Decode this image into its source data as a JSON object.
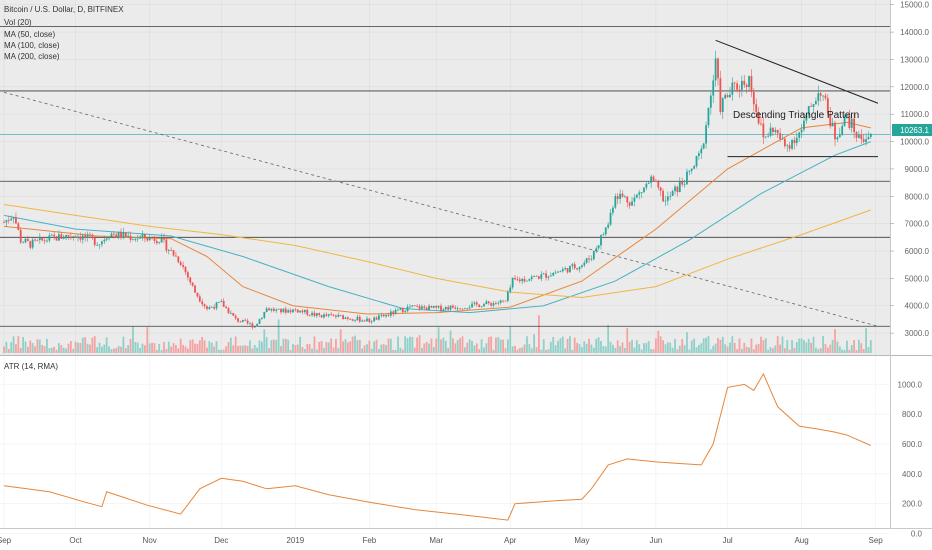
{
  "chart_data": [
    {
      "type": "candlestick",
      "title": "Bitcoin / U.S. Dollar, D, BITFINEX",
      "legend": [
        "Vol (20)",
        "MA (50, close)",
        "MA (100, close)",
        "MA (200, close)"
      ],
      "y_ticks": [
        "15000.0",
        "14000.0",
        "13000.0",
        "12000.0",
        "11000.0",
        "10000.0",
        "9000.0",
        "8000.0",
        "7000.0",
        "6000.0",
        "5000.0",
        "4000.0",
        "3000.0"
      ],
      "ylim": [
        2200,
        15100
      ],
      "last_price": "10263.1",
      "annotation": "Descending Triangle Pattern",
      "x_ticks": [
        "Sep",
        "Oct",
        "Nov",
        "Dec",
        "2019",
        "Feb",
        "Mar",
        "Apr",
        "May",
        "Jun",
        "Jul",
        "Aug",
        "Sep"
      ],
      "x_range": [
        "2018-09-01",
        "2019-09-02"
      ],
      "horizontal_levels": [
        14200,
        11850,
        10260,
        8550,
        6500,
        3250
      ],
      "triangle": {
        "upper": [
          [
            "2019-06-26",
            13700
          ],
          [
            "2019-09-02",
            11400
          ]
        ],
        "lower": [
          [
            "2019-07-01",
            9450
          ],
          [
            "2019-09-02",
            9450
          ]
        ]
      },
      "long_trendline": [
        [
          "2018-09-01",
          11800
        ],
        [
          "2019-09-02",
          3250
        ]
      ],
      "price_path": [
        [
          "2018-09-01",
          7050
        ],
        [
          "2018-09-05",
          7350
        ],
        [
          "2018-09-08",
          6400
        ],
        [
          "2018-09-12",
          6250
        ],
        [
          "2018-09-20",
          6450
        ],
        [
          "2018-10-01",
          6600
        ],
        [
          "2018-10-11",
          6300
        ],
        [
          "2018-10-15",
          6650
        ],
        [
          "2018-10-25",
          6500
        ],
        [
          "2018-11-05",
          6450
        ],
        [
          "2018-11-14",
          5600
        ],
        [
          "2018-11-20",
          4500
        ],
        [
          "2018-11-25",
          3900
        ],
        [
          "2018-12-01",
          4100
        ],
        [
          "2018-12-07",
          3500
        ],
        [
          "2018-12-15",
          3250
        ],
        [
          "2018-12-20",
          3900
        ],
        [
          "2018-12-25",
          3800
        ],
        [
          "2019-01-01",
          3850
        ],
        [
          "2019-01-10",
          3650
        ],
        [
          "2019-01-20",
          3600
        ],
        [
          "2019-02-01",
          3450
        ],
        [
          "2019-02-08",
          3650
        ],
        [
          "2019-02-18",
          3950
        ],
        [
          "2019-03-01",
          3900
        ],
        [
          "2019-03-15",
          4000
        ],
        [
          "2019-03-30",
          4150
        ],
        [
          "2019-04-02",
          4900
        ],
        [
          "2019-04-15",
          5100
        ],
        [
          "2019-04-25",
          5350
        ],
        [
          "2019-05-01",
          5500
        ],
        [
          "2019-05-05",
          5800
        ],
        [
          "2019-05-12",
          7000
        ],
        [
          "2019-05-15",
          8100
        ],
        [
          "2019-05-22",
          7800
        ],
        [
          "2019-05-30",
          8600
        ],
        [
          "2019-06-05",
          7800
        ],
        [
          "2019-06-15",
          8800
        ],
        [
          "2019-06-20",
          9600
        ],
        [
          "2019-06-26",
          12800
        ],
        [
          "2019-06-28",
          11300
        ],
        [
          "2019-07-03",
          11900
        ],
        [
          "2019-07-10",
          12300
        ],
        [
          "2019-07-16",
          10100
        ],
        [
          "2019-07-20",
          10500
        ],
        [
          "2019-07-25",
          9800
        ],
        [
          "2019-08-01",
          10400
        ],
        [
          "2019-08-06",
          11500
        ],
        [
          "2019-08-09",
          11900
        ],
        [
          "2019-08-15",
          10200
        ],
        [
          "2019-08-20",
          10900
        ],
        [
          "2019-08-25",
          10100
        ],
        [
          "2019-08-30",
          10263
        ]
      ],
      "ma_50_path": [
        [
          "2018-09-01",
          6900
        ],
        [
          "2018-10-10",
          6550
        ],
        [
          "2018-11-10",
          6450
        ],
        [
          "2018-11-25",
          5800
        ],
        [
          "2018-12-10",
          4700
        ],
        [
          "2018-12-31",
          4000
        ],
        [
          "2019-01-31",
          3700
        ],
        [
          "2019-03-01",
          3750
        ],
        [
          "2019-04-01",
          3950
        ],
        [
          "2019-05-01",
          4900
        ],
        [
          "2019-06-01",
          6800
        ],
        [
          "2019-07-01",
          9000
        ],
        [
          "2019-08-01",
          10500
        ],
        [
          "2019-08-20",
          10700
        ],
        [
          "2019-08-30",
          10500
        ]
      ],
      "ma_100_path": [
        [
          "2018-09-01",
          7300
        ],
        [
          "2018-10-01",
          6800
        ],
        [
          "2018-11-10",
          6550
        ],
        [
          "2018-12-10",
          5800
        ],
        [
          "2019-01-15",
          4700
        ],
        [
          "2019-02-15",
          3900
        ],
        [
          "2019-03-15",
          3750
        ],
        [
          "2019-04-15",
          4000
        ],
        [
          "2019-05-15",
          4900
        ],
        [
          "2019-06-15",
          6400
        ],
        [
          "2019-07-15",
          8100
        ],
        [
          "2019-08-15",
          9500
        ],
        [
          "2019-08-30",
          10000
        ]
      ],
      "ma_200_path": [
        [
          "2018-09-01",
          7700
        ],
        [
          "2018-10-01",
          7300
        ],
        [
          "2018-11-01",
          6900
        ],
        [
          "2018-12-01",
          6600
        ],
        [
          "2019-01-01",
          6200
        ],
        [
          "2019-02-01",
          5600
        ],
        [
          "2019-03-01",
          5000
        ],
        [
          "2019-04-01",
          4500
        ],
        [
          "2019-05-01",
          4300
        ],
        [
          "2019-06-01",
          4700
        ],
        [
          "2019-07-01",
          5700
        ],
        [
          "2019-08-01",
          6600
        ],
        [
          "2019-08-30",
          7500
        ]
      ],
      "colors": {
        "up": "#26a69a",
        "down": "#ef5350",
        "ma_50": "#e8863a",
        "ma_100": "#46b2c4",
        "ma_200": "#f0b644",
        "price_label": "#26a69a"
      }
    },
    {
      "type": "line",
      "title": "ATR (14, RMA)",
      "y_ticks": [
        "1000.0",
        "800.0",
        "600.0",
        "400.0",
        "200.0",
        "0.0"
      ],
      "ylim": [
        -10,
        1130
      ],
      "x": [
        "2018-09-01",
        "2018-09-20",
        "2018-10-05",
        "2018-10-12",
        "2018-10-14",
        "2018-10-31",
        "2018-11-14",
        "2018-11-22",
        "2018-12-01",
        "2018-12-10",
        "2018-12-20",
        "2019-01-01",
        "2019-01-15",
        "2019-02-01",
        "2019-02-20",
        "2019-03-15",
        "2019-03-31",
        "2019-04-03",
        "2019-04-20",
        "2019-05-01",
        "2019-05-05",
        "2019-05-12",
        "2019-05-20",
        "2019-06-01",
        "2019-06-10",
        "2019-06-20",
        "2019-06-25",
        "2019-07-01",
        "2019-07-08",
        "2019-07-12",
        "2019-07-16",
        "2019-07-22",
        "2019-07-31",
        "2019-08-08",
        "2019-08-15",
        "2019-08-20",
        "2019-08-30"
      ],
      "series": [
        {
          "values": [
            320,
            280,
            210,
            180,
            280,
            190,
            130,
            300,
            370,
            350,
            300,
            320,
            260,
            210,
            160,
            120,
            90,
            200,
            220,
            230,
            300,
            460,
            500,
            480,
            470,
            460,
            600,
            980,
            1000,
            960,
            1070,
            850,
            720,
            700,
            680,
            660,
            590
          ],
          "color": "#e8863a"
        }
      ]
    }
  ]
}
